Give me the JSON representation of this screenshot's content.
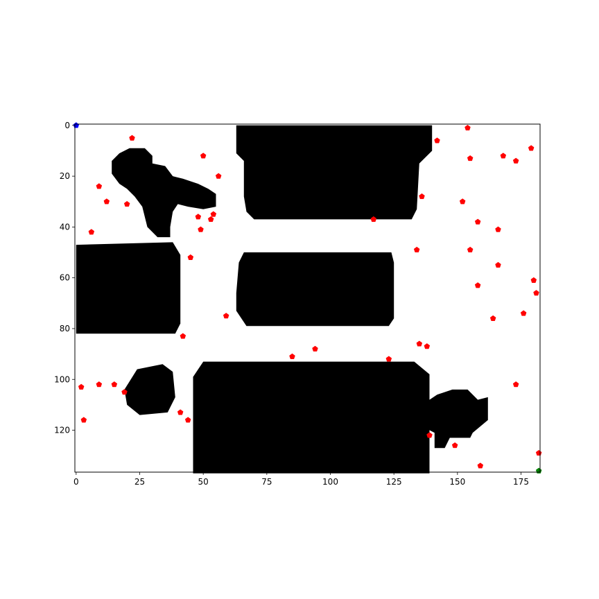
{
  "chart_data": {
    "type": "scatter",
    "title": "",
    "xlabel": "",
    "ylabel": "",
    "xlim": [
      -0.5,
      182.5
    ],
    "ylim": [
      136.5,
      -0.5
    ],
    "y_axis_inverted": true,
    "grid": false,
    "legend": "none",
    "x_ticks": [
      0,
      25,
      50,
      75,
      100,
      125,
      150,
      175
    ],
    "y_ticks": [
      0,
      20,
      40,
      60,
      80,
      100,
      120
    ],
    "background_image": "binary occupancy grid map (black = obstacle, white = free space)",
    "obstacles": [
      {
        "name": "top-center-block",
        "x_range": [
          62,
          140
        ],
        "y_range": [
          0,
          37
        ]
      },
      {
        "name": "left-block",
        "x_range": [
          0,
          41
        ],
        "y_range": [
          46,
          82
        ]
      },
      {
        "name": "center-block",
        "x_range": [
          63,
          125
        ],
        "y_range": [
          50,
          79
        ]
      },
      {
        "name": "bottom-center-block",
        "x_range": [
          46,
          139
        ],
        "y_range": [
          93,
          137
        ]
      },
      {
        "name": "top-left-blob",
        "x_range": [
          14,
          56
        ],
        "y_range": [
          8,
          44
        ]
      },
      {
        "name": "bottom-left-blob",
        "x_range": [
          19,
          39
        ],
        "y_range": [
          94,
          114
        ]
      },
      {
        "name": "bottom-right-blob",
        "x_range": [
          139,
          162
        ],
        "y_range": [
          104,
          127
        ]
      }
    ],
    "series": [
      {
        "marker": "pentagon",
        "color": "#ff0000",
        "points": [
          [
            22,
            5
          ],
          [
            154,
            1
          ],
          [
            142,
            6
          ],
          [
            50,
            12
          ],
          [
            155,
            13
          ],
          [
            168,
            12
          ],
          [
            173,
            14
          ],
          [
            179,
            9
          ],
          [
            9,
            24
          ],
          [
            56,
            20
          ],
          [
            12,
            30
          ],
          [
            20,
            31
          ],
          [
            136,
            28
          ],
          [
            152,
            30
          ],
          [
            48,
            36
          ],
          [
            54,
            35
          ],
          [
            53,
            37
          ],
          [
            117,
            37
          ],
          [
            49,
            41
          ],
          [
            158,
            38
          ],
          [
            166,
            41
          ],
          [
            6,
            42
          ],
          [
            134,
            49
          ],
          [
            155,
            49
          ],
          [
            45,
            52
          ],
          [
            166,
            55
          ],
          [
            180,
            61
          ],
          [
            158,
            63
          ],
          [
            181,
            66
          ],
          [
            59,
            75
          ],
          [
            164,
            76
          ],
          [
            176,
            74
          ],
          [
            42,
            83
          ],
          [
            135,
            86
          ],
          [
            138,
            87
          ],
          [
            94,
            88
          ],
          [
            85,
            91
          ],
          [
            123,
            92
          ],
          [
            2,
            103
          ],
          [
            9,
            102
          ],
          [
            15,
            102
          ],
          [
            19,
            105
          ],
          [
            173,
            102
          ],
          [
            3,
            116
          ],
          [
            41,
            113
          ],
          [
            44,
            116
          ],
          [
            139,
            122
          ],
          [
            149,
            126
          ],
          [
            159,
            134
          ],
          [
            182,
            129
          ]
        ]
      },
      {
        "marker": "pentagon",
        "color": "#0000ff",
        "points": [
          [
            0,
            0
          ]
        ]
      },
      {
        "marker": "pentagon",
        "color": "#008000",
        "points": [
          [
            182,
            136
          ]
        ]
      }
    ]
  }
}
